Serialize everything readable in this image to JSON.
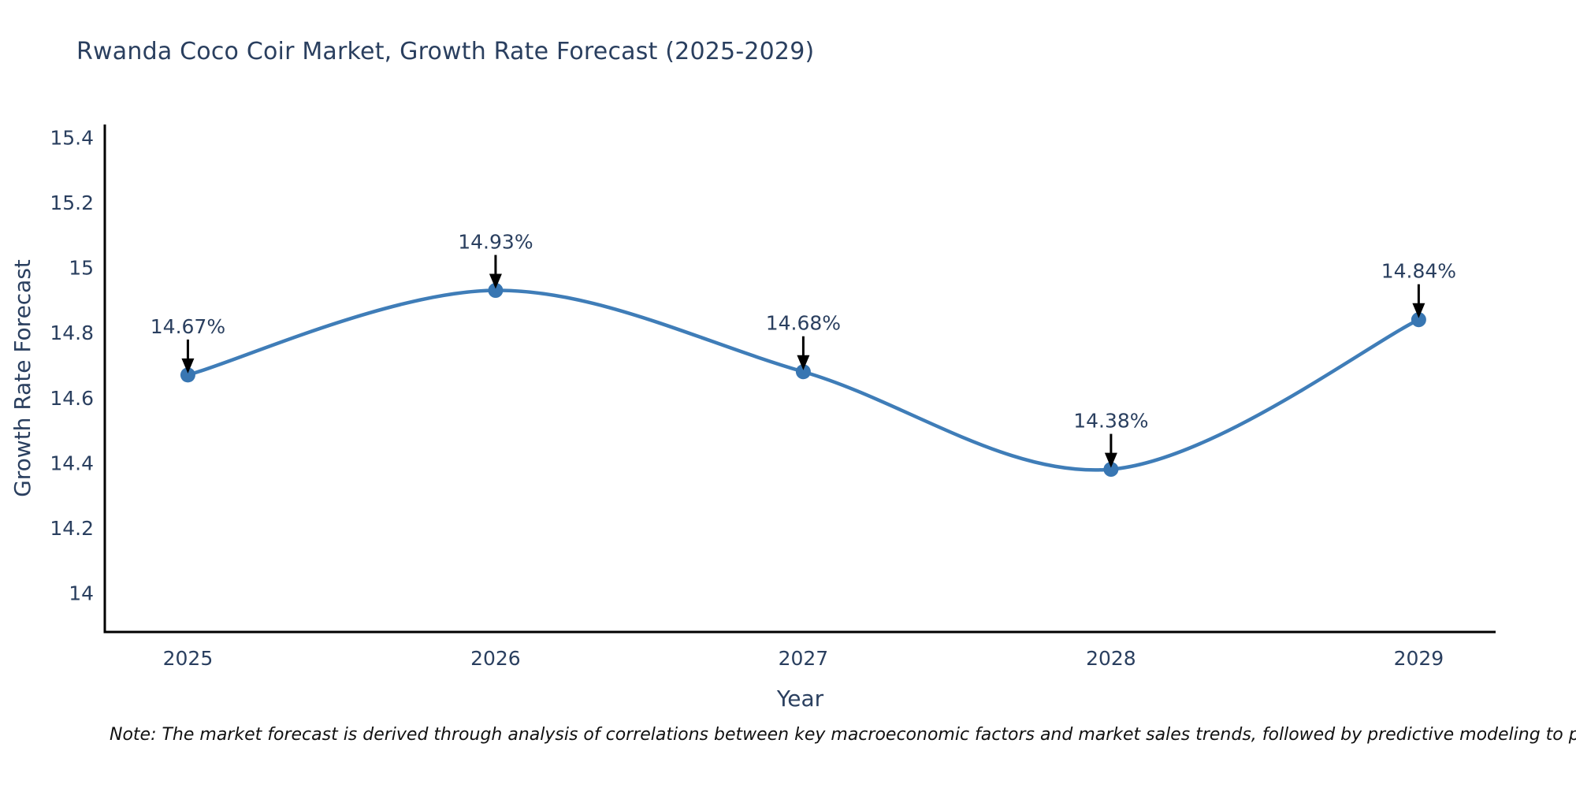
{
  "title": "Rwanda Coco Coir Market, Growth Rate Forecast (2025-2029)",
  "note": "Note: The market forecast is derived through analysis of correlations between key macroeconomic factors and market sales trends, followed by predictive modeling to project future sales.",
  "chart_data": {
    "type": "line",
    "line_shape": "spline",
    "x": [
      2025,
      2026,
      2027,
      2028,
      2029
    ],
    "series": [
      {
        "name": "Growth Rate Forecast",
        "values": [
          14.67,
          14.93,
          14.68,
          14.38,
          14.84
        ]
      }
    ],
    "point_labels": [
      "14.67%",
      "14.93%",
      "14.68%",
      "14.38%",
      "14.84%"
    ],
    "title": "Rwanda Coco Coir Market, Growth Rate Forecast (2025-2029)",
    "xlabel": "Year",
    "ylabel": "Growth Rate Forecast",
    "xtick_labels": [
      "2025",
      "2026",
      "2027",
      "2028",
      "2029"
    ],
    "xticks": [
      2025,
      2026,
      2027,
      2028,
      2029
    ],
    "yticks": [
      14,
      14.2,
      14.4,
      14.6,
      14.8,
      15,
      15.2,
      15.4
    ],
    "ytick_labels": [
      "14",
      "14.2",
      "14.4",
      "14.6",
      "14.8",
      "15",
      "15.2",
      "15.4"
    ],
    "xlim": [
      2024.73,
      2029.25
    ],
    "ylim": [
      13.88,
      15.44
    ],
    "grid": false,
    "legend": "none",
    "colors": {
      "line": "#3f7db8",
      "marker": "#3876b2",
      "axis": "#000000",
      "text": "#2a3f5f",
      "annotation_arrow": "#000000"
    }
  }
}
